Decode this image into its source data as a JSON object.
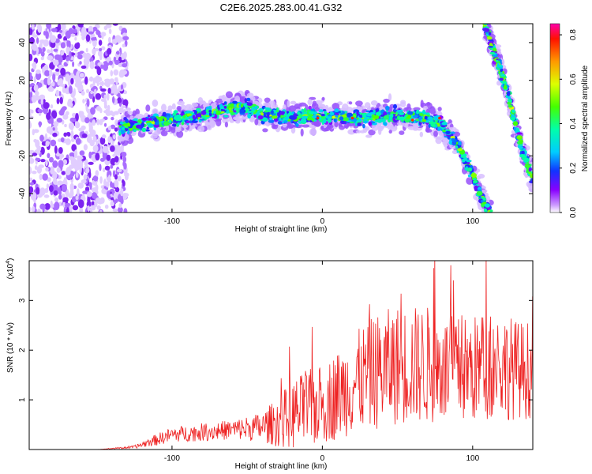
{
  "title": "C2E6.2025.283.00.41.G32",
  "chart_data": [
    {
      "type": "heatmap",
      "xlabel": "Height of straight line (km)",
      "ylabel": "Frequency (Hz)",
      "xlim": [
        -195,
        140
      ],
      "ylim": [
        -50,
        50
      ],
      "x_ticks": [
        -100,
        0,
        100
      ],
      "x_tick_labels": [
        "-100",
        "0",
        "100"
      ],
      "y_ticks": [
        -40,
        -20,
        0,
        20,
        40
      ],
      "y_tick_labels": [
        "-40",
        "-20",
        "0",
        "20",
        "40"
      ],
      "colorbar": {
        "label": "Normalized spectral amplitude",
        "range": [
          0,
          0.85
        ],
        "ticks": [
          "0.0",
          "0.2",
          "0.4",
          "0.6",
          "0.8"
        ],
        "tick_values": [
          0,
          0.2,
          0.4,
          0.6,
          0.8
        ]
      },
      "trace_main": {
        "x": [
          -135,
          -120,
          -100,
          -80,
          -60,
          -50,
          -40,
          -20,
          0,
          20,
          40,
          60,
          70,
          80,
          90,
          100,
          105,
          110
        ],
        "y": [
          -5,
          -3,
          -1,
          2,
          5,
          6,
          2,
          1,
          1,
          0,
          1,
          1,
          0,
          -4,
          -14,
          -30,
          -40,
          -50
        ]
      },
      "trace_secondary": {
        "x": [
          108,
          115,
          120,
          125,
          130,
          135,
          140
        ],
        "y": [
          50,
          33,
          22,
          8,
          -8,
          -22,
          -32
        ]
      },
      "noise_region_x": [
        -195,
        -130
      ]
    },
    {
      "type": "line",
      "xlabel": "Height of straight line (km)",
      "ylabel": "SNR (10 * v/v)",
      "y_multiplier_label": "(x10",
      "y_multiplier_exp": "4",
      "y_multiplier_close": ")",
      "xlim": [
        -195,
        140
      ],
      "ylim": [
        0,
        3.8
      ],
      "x_ticks": [
        -100,
        0,
        100
      ],
      "x_tick_labels": [
        "-100",
        "0",
        "100"
      ],
      "y_ticks": [
        1,
        2,
        3
      ],
      "y_tick_labels": [
        "1",
        "2",
        "3"
      ],
      "series": [
        {
          "name": "SNR",
          "color": "#ee2222",
          "x": [
            -195,
            -150,
            -125,
            -110,
            -100,
            -80,
            -60,
            -40,
            -30,
            -20,
            -10,
            0,
            10,
            20,
            30,
            40,
            50,
            60,
            70,
            80,
            90,
            100,
            110,
            120,
            130,
            140
          ],
          "mean": [
            0.0,
            0.0,
            0.05,
            0.2,
            0.3,
            0.35,
            0.4,
            0.45,
            0.55,
            0.7,
            0.8,
            0.9,
            1.1,
            1.3,
            1.5,
            1.6,
            1.7,
            1.7,
            1.7,
            1.6,
            1.6,
            1.6,
            1.7,
            1.7,
            1.6,
            1.6
          ],
          "spread": [
            0.0,
            0.0,
            0.03,
            0.12,
            0.15,
            0.18,
            0.2,
            0.3,
            0.5,
            0.7,
            0.8,
            0.8,
            0.9,
            1.0,
            1.1,
            1.2,
            1.2,
            1.2,
            1.2,
            1.1,
            1.1,
            1.1,
            1.1,
            1.1,
            1.0,
            1.0
          ]
        }
      ]
    }
  ],
  "colors": {
    "axes": "#000000",
    "snr_line": "#ee2222"
  }
}
